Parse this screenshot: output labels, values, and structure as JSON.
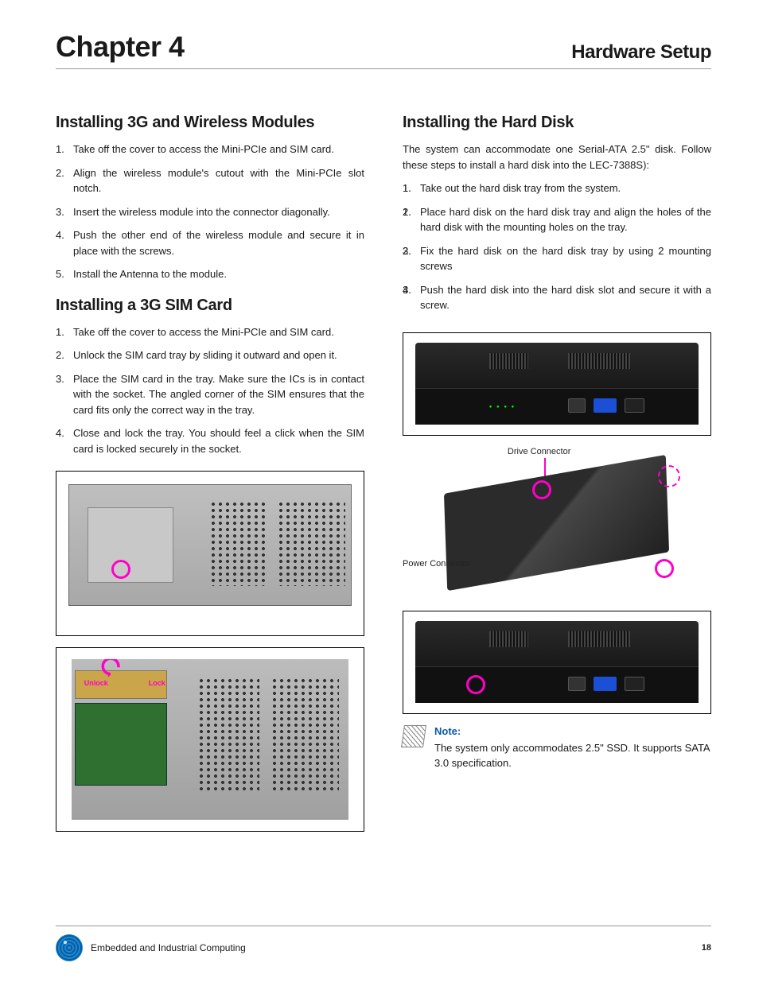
{
  "header": {
    "chapter": "Chapter 4",
    "page_title": "Hardware Setup"
  },
  "left": {
    "section1_title": "Installing 3G and Wireless Modules",
    "section1_steps": [
      "Take off the cover to access the Mini-PCIe and SIM card.",
      "Align the  wireless module's cutout with the Mini-PCIe slot notch.",
      "Insert the wireless module into the connector diagonally.",
      "Push the other end of the wireless module and secure it in place with the screws.",
      "Install the Antenna to the module."
    ],
    "section2_title": "Installing a 3G SIM Card",
    "section2_steps": [
      "Take off the cover to access the Mini-PCIe and SIM card.",
      "Unlock the SIM card tray by sliding it outward and open it.",
      "Place the SIM card in the tray.  Make sure the ICs is in contact with the socket. The angled corner of the SIM ensures that the card fits only the correct way in the tray.",
      "Close and lock the tray. You should feel a click when the SIM card is locked securely in the socket."
    ],
    "fig2_labels": {
      "unlock": "Unlock",
      "lock": "Lock"
    }
  },
  "right": {
    "section_title": "Installing the Hard Disk",
    "intro": "The system can accommodate one Serial-ATA 2.5\" disk. Follow these steps to install a hard disk into the LEC-7388S):",
    "steps": [
      "Take out the hard disk tray from the system.",
      "Place hard disk on the hard disk tray and align the holes of the hard disk with the mounting holes on the tray.",
      "Fix the hard disk on the hard disk tray by using 2 mounting screws",
      "Push the hard disk into the hard disk slot and secure it with a screw."
    ],
    "fig_d_labels": {
      "drive": "Drive Connector",
      "power": "Power Connector"
    },
    "note_title": "Note:",
    "note_body": "The system only accommodates 2.5\" SSD. It supports SATA 3.0 specification."
  },
  "footer": {
    "text": "Embedded and Industrial Computing",
    "page": "18"
  },
  "colors": {
    "accent_pink": "#ff00c8",
    "note_blue": "#0b5aa8"
  }
}
